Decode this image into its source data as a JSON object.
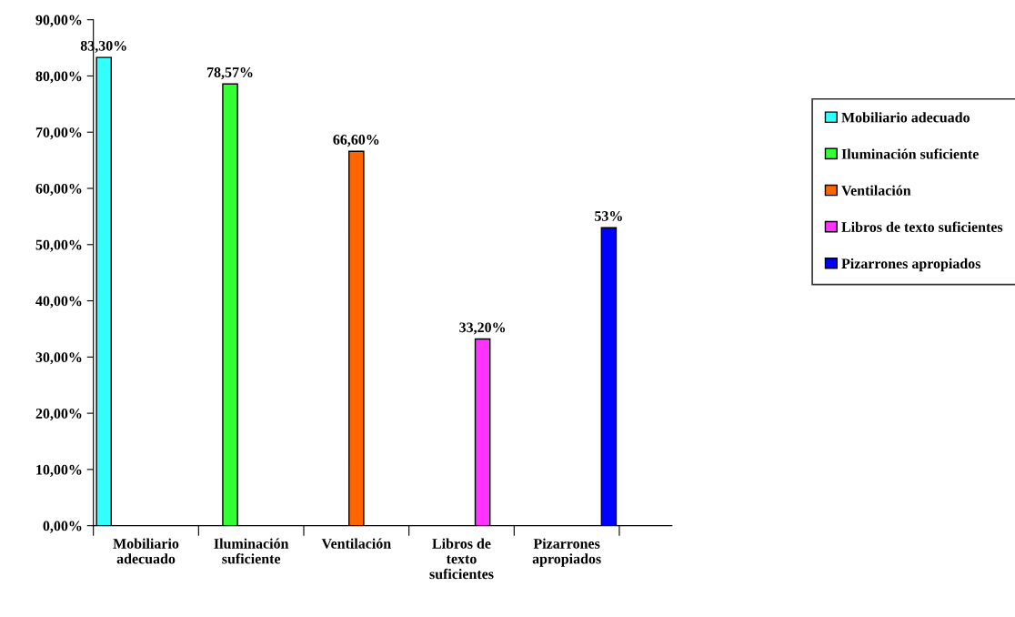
{
  "chart_data": {
    "type": "bar",
    "categories": [
      "Mobiliario\nadecuado",
      "Iluminación\nsuficiente",
      "Ventilación",
      "Libros de\ntexto\nsuficientes",
      "Pizarrones\napropiados"
    ],
    "series": [
      {
        "name": "Mobiliario adecuado",
        "color": "#33ffff",
        "values": [
          83.3,
          null,
          null,
          null,
          null
        ],
        "value_labels": [
          "83,30%",
          null,
          null,
          null,
          null
        ]
      },
      {
        "name": "Iluminación suficiente",
        "color": "#33ff33",
        "values": [
          null,
          78.57,
          null,
          null,
          null
        ],
        "value_labels": [
          null,
          "78,57%",
          null,
          null,
          null
        ]
      },
      {
        "name": "Ventilación",
        "color": "#ff6600",
        "values": [
          null,
          null,
          66.6,
          null,
          null
        ],
        "value_labels": [
          null,
          null,
          "66,60%",
          null,
          null
        ]
      },
      {
        "name": "Libros de texto suficientes",
        "color": "#ff33ff",
        "values": [
          null,
          null,
          null,
          33.2,
          null
        ],
        "value_labels": [
          null,
          null,
          null,
          "33,20%",
          null
        ]
      },
      {
        "name": "Pizarrones apropiados",
        "color": "#0000ff",
        "values": [
          null,
          null,
          null,
          null,
          53
        ],
        "value_labels": [
          null,
          null,
          null,
          null,
          "53%"
        ]
      }
    ],
    "ylim": [
      0,
      90
    ],
    "yticks": [
      {
        "value": 0,
        "label": "0,00%"
      },
      {
        "value": 10,
        "label": "10,00%"
      },
      {
        "value": 20,
        "label": "20,00%"
      },
      {
        "value": 30,
        "label": "30,00%"
      },
      {
        "value": 40,
        "label": "40,00%"
      },
      {
        "value": 50,
        "label": "50,00%"
      },
      {
        "value": 60,
        "label": "60,00%"
      },
      {
        "value": 70,
        "label": "70,00%"
      },
      {
        "value": 80,
        "label": "80,00%"
      },
      {
        "value": 90,
        "label": "90,00%"
      }
    ],
    "grid": false,
    "legend": "right"
  }
}
